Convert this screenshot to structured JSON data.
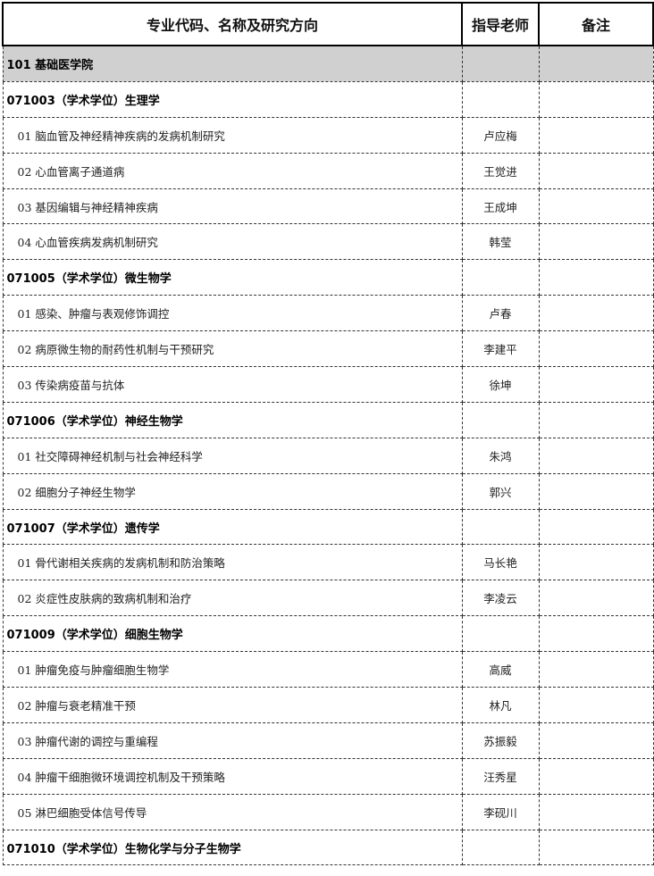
{
  "header": {
    "col1": "专业代码、名称及研究方向",
    "col2": "指导老师",
    "col3": "备注"
  },
  "rows": [
    {
      "type": "school",
      "text": "101 基础医学院",
      "advisor": "",
      "note": ""
    },
    {
      "type": "major",
      "text": "071003（学术学位）生理学",
      "advisor": "",
      "note": ""
    },
    {
      "type": "dir",
      "text": "01 脑血管及神经精神疾病的发病机制研究",
      "advisor": "卢应梅",
      "note": ""
    },
    {
      "type": "dir",
      "text": "02 心血管离子通道病",
      "advisor": "王觉进",
      "note": ""
    },
    {
      "type": "dir",
      "text": "03 基因编辑与神经精神疾病",
      "advisor": "王成坤",
      "note": ""
    },
    {
      "type": "dir",
      "text": "04 心血管疾病发病机制研究",
      "advisor": "韩莹",
      "note": ""
    },
    {
      "type": "major",
      "text": "071005（学术学位）微生物学",
      "advisor": "",
      "note": ""
    },
    {
      "type": "dir",
      "text": "01 感染、肿瘤与表观修饰调控",
      "advisor": "卢春",
      "note": ""
    },
    {
      "type": "dir",
      "text": "02 病原微生物的耐药性机制与干预研究",
      "advisor": "李建平",
      "note": ""
    },
    {
      "type": "dir",
      "text": "03 传染病疫苗与抗体",
      "advisor": "徐坤",
      "note": ""
    },
    {
      "type": "major",
      "text": "071006（学术学位）神经生物学",
      "advisor": "",
      "note": ""
    },
    {
      "type": "dir",
      "text": "01 社交障碍神经机制与社会神经科学",
      "advisor": "朱鸿",
      "note": ""
    },
    {
      "type": "dir",
      "text": "02 细胞分子神经生物学",
      "advisor": "郭兴",
      "note": ""
    },
    {
      "type": "major",
      "text": "071007（学术学位）遗传学",
      "advisor": "",
      "note": ""
    },
    {
      "type": "dir",
      "text": "01 骨代谢相关疾病的发病机制和防治策略",
      "advisor": "马长艳",
      "note": ""
    },
    {
      "type": "dir",
      "text": "02 炎症性皮肤病的致病机制和治疗",
      "advisor": "李凌云",
      "note": ""
    },
    {
      "type": "major",
      "text": "071009（学术学位）细胞生物学",
      "advisor": "",
      "note": ""
    },
    {
      "type": "dir",
      "text": "01 肿瘤免疫与肿瘤细胞生物学",
      "advisor": "高威",
      "note": ""
    },
    {
      "type": "dir",
      "text": "02 肿瘤与衰老精准干预",
      "advisor": "林凡",
      "note": ""
    },
    {
      "type": "dir",
      "text": "03 肿瘤代谢的调控与重编程",
      "advisor": "苏振毅",
      "note": ""
    },
    {
      "type": "dir",
      "text": "04 肿瘤干细胞微环境调控机制及干预策略",
      "advisor": "汪秀星",
      "note": ""
    },
    {
      "type": "dir",
      "text": "05 淋巴细胞受体信号传导",
      "advisor": "李砚川",
      "note": ""
    },
    {
      "type": "major",
      "text": "071010（学术学位）生物化学与分子生物学",
      "advisor": "",
      "note": ""
    }
  ]
}
